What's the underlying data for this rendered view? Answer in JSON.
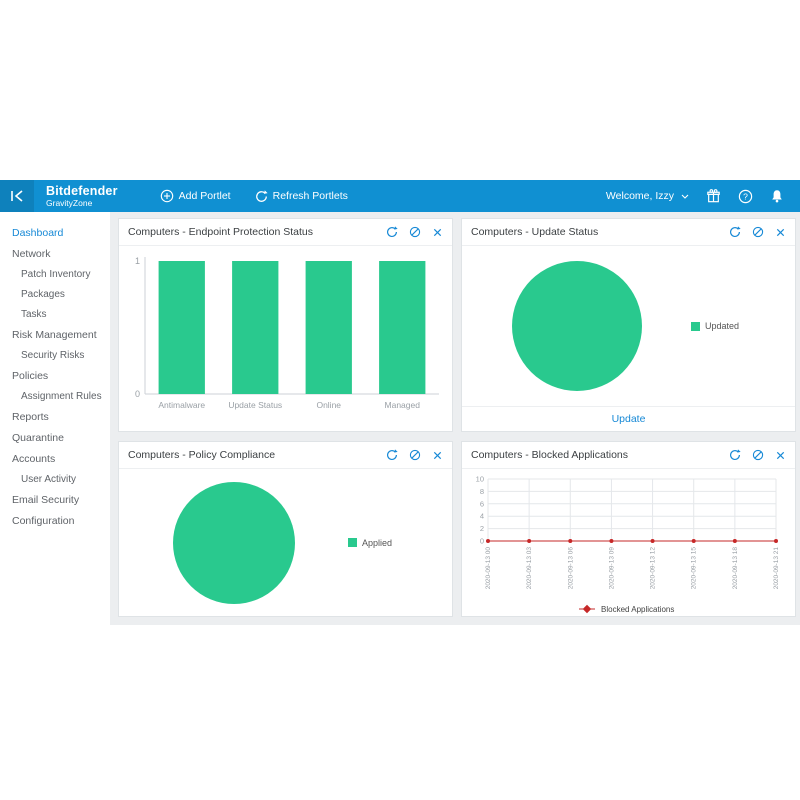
{
  "topbar": {
    "brand_line1": "Bitdefender",
    "brand_line2": "GravityZone",
    "add_portlet_label": "Add Portlet",
    "refresh_portlets_label": "Refresh Portlets",
    "welcome_label": "Welcome, Izzy"
  },
  "sidebar": {
    "items": [
      {
        "label": "Dashboard",
        "selected": true
      },
      {
        "label": "Network"
      },
      {
        "label": "Patch Inventory",
        "sub": true
      },
      {
        "label": "Packages",
        "sub": true
      },
      {
        "label": "Tasks",
        "sub": true
      },
      {
        "label": "Risk Management"
      },
      {
        "label": "Security Risks",
        "sub": true
      },
      {
        "label": "Policies"
      },
      {
        "label": "Assignment Rules",
        "sub": true
      },
      {
        "label": "Reports"
      },
      {
        "label": "Quarantine"
      },
      {
        "label": "Accounts"
      },
      {
        "label": "User Activity",
        "sub": true
      },
      {
        "label": "Email Security"
      },
      {
        "label": "Configuration"
      }
    ]
  },
  "portlets": [
    {
      "title": "Computers - Endpoint Protection Status"
    },
    {
      "title": "Computers - Update Status",
      "action_label": "Update"
    },
    {
      "title": "Computers - Policy Compliance"
    },
    {
      "title": "Computers - Blocked Applications"
    }
  ],
  "colors": {
    "topbar_blue": "#1090d2",
    "accent_blue": "#1789d6",
    "chart_green": "#29c98e",
    "line_red": "#c62828",
    "main_background": "#eceef0"
  },
  "chart_data": [
    {
      "type": "bar",
      "title": "Computers - Endpoint Protection Status",
      "categories": [
        "Antimalware",
        "Update Status",
        "Online",
        "Managed"
      ],
      "values": [
        1,
        1,
        1,
        1
      ],
      "ylim": [
        0,
        1
      ],
      "yticks": [
        0,
        1
      ],
      "color": "#29c98e",
      "grid": false,
      "legend_position": "none"
    },
    {
      "type": "pie",
      "title": "Computers - Update Status",
      "slices": [
        {
          "label": "Updated",
          "value": 100,
          "color": "#29c98e"
        }
      ],
      "legend_position": "right"
    },
    {
      "type": "pie",
      "title": "Computers - Policy Compliance",
      "slices": [
        {
          "label": "Applied",
          "value": 100,
          "color": "#29c98e"
        }
      ],
      "legend_position": "right"
    },
    {
      "type": "line",
      "title": "Computers - Blocked Applications",
      "x": [
        "2020-09-13 00",
        "2020-09-13 03",
        "2020-09-13 06",
        "2020-09-13 09",
        "2020-09-13 12",
        "2020-09-13 15",
        "2020-09-13 18",
        "2020-09-13 21"
      ],
      "series": [
        {
          "name": "Blocked Applications",
          "values": [
            0,
            0,
            0,
            0,
            0,
            0,
            0,
            0
          ],
          "color": "#c62828"
        }
      ],
      "ylim": [
        0,
        10
      ],
      "yticks": [
        0,
        2,
        4,
        6,
        8,
        10
      ],
      "grid": true,
      "legend_position": "bottom"
    }
  ]
}
